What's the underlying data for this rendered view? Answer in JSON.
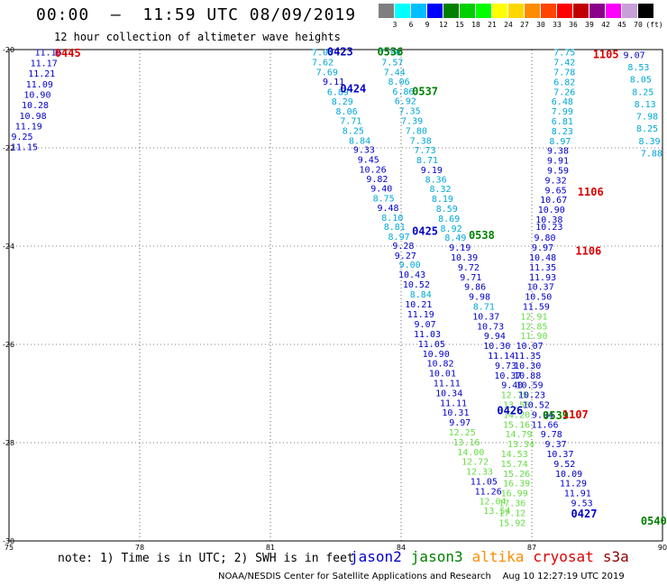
{
  "header": {
    "title": "00:00  –  11:59 UTC 08/09/2019",
    "subtitle": "12 hour collection of altimeter wave heights"
  },
  "scale": {
    "colors": [
      "#7f7f7f",
      "#00ffff",
      "#00bfff",
      "#0000ff",
      "#008000",
      "#00d000",
      "#00ff00",
      "#ffff00",
      "#ffd700",
      "#ff8c00",
      "#ff4500",
      "#ff0000",
      "#c00000",
      "#8b008b",
      "#ff00ff",
      "#c8a0d8",
      "#000000"
    ],
    "labels": [
      "3",
      "6",
      "9",
      "12",
      "15",
      "18",
      "21",
      "24",
      "27",
      "30",
      "33",
      "36",
      "39",
      "42",
      "45",
      "70",
      "(ft)"
    ]
  },
  "map": {
    "lon_range": [
      75,
      90
    ],
    "lat_range": [
      -30,
      -20
    ],
    "x_ticks": [
      "75",
      "78",
      "81",
      "84",
      "87",
      "90"
    ],
    "y_ticks": [
      "-20",
      "-22",
      "-24",
      "-26",
      "-28",
      "-30"
    ],
    "color_map": {
      "j2": "#0000cc",
      "j3": "#008000",
      "cy": "#dd0000",
      "al": "#ff8c00",
      "lc": "#00a8d8",
      "lg": "#66dd44"
    },
    "pass_labels": [
      {
        "t": "0445",
        "lon": 76.35,
        "lat": -20.07,
        "c": "cy"
      },
      {
        "t": "0423",
        "lon": 82.6,
        "lat": -20.05,
        "c": "j2"
      },
      {
        "t": "0536",
        "lon": 83.75,
        "lat": -20.05,
        "c": "j3"
      },
      {
        "t": "0424",
        "lon": 82.9,
        "lat": -20.8,
        "c": "j2"
      },
      {
        "t": "0537",
        "lon": 84.55,
        "lat": -20.85,
        "c": "j3"
      },
      {
        "t": "0425",
        "lon": 84.55,
        "lat": -23.7,
        "c": "j2"
      },
      {
        "t": "0538",
        "lon": 85.85,
        "lat": -23.78,
        "c": "j3"
      },
      {
        "t": "0426",
        "lon": 86.5,
        "lat": -27.35,
        "c": "j2"
      },
      {
        "t": "0539",
        "lon": 87.55,
        "lat": -27.45,
        "c": "j3"
      },
      {
        "t": "1107",
        "lon": 88.0,
        "lat": -27.43,
        "c": "cy"
      },
      {
        "t": "0427",
        "lon": 88.2,
        "lat": -29.45,
        "c": "j2"
      },
      {
        "t": "0540",
        "lon": 89.8,
        "lat": -29.6,
        "c": "j3"
      },
      {
        "t": "1105",
        "lon": 88.7,
        "lat": -20.1,
        "c": "cy"
      },
      {
        "t": "1106",
        "lon": 88.35,
        "lat": -22.9,
        "c": "cy"
      },
      {
        "t": "1106",
        "lon": 88.3,
        "lat": -24.1,
        "c": "cy"
      }
    ],
    "values": [
      {
        "t": "11.16",
        "lon": 75.9,
        "lat": -20.05,
        "c": "j2"
      },
      {
        "t": "11.17",
        "lon": 75.8,
        "lat": -20.27,
        "c": "j2"
      },
      {
        "t": "11.21",
        "lon": 75.75,
        "lat": -20.48,
        "c": "j2"
      },
      {
        "t": "11.09",
        "lon": 75.7,
        "lat": -20.7,
        "c": "j2"
      },
      {
        "t": "10.90",
        "lon": 75.65,
        "lat": -20.91,
        "c": "j2"
      },
      {
        "t": "10.28",
        "lon": 75.6,
        "lat": -21.12,
        "c": "j2"
      },
      {
        "t": "10.98",
        "lon": 75.55,
        "lat": -21.34,
        "c": "j2"
      },
      {
        "t": "11.19",
        "lon": 75.45,
        "lat": -21.55,
        "c": "j2"
      },
      {
        "t": "9.25",
        "lon": 75.3,
        "lat": -21.76,
        "c": "j2"
      },
      {
        "t": "11.15",
        "lon": 75.35,
        "lat": -21.97,
        "c": "j2"
      },
      {
        "t": "7.03",
        "lon": 82.2,
        "lat": -20.05,
        "c": "lc"
      },
      {
        "t": "7.62",
        "lon": 82.2,
        "lat": -20.25,
        "c": "lc"
      },
      {
        "t": "7.69",
        "lon": 82.3,
        "lat": -20.45,
        "c": "lc"
      },
      {
        "t": "9.11",
        "lon": 82.45,
        "lat": -20.64,
        "c": "j2"
      },
      {
        "t": "6.89",
        "lon": 82.55,
        "lat": -20.85,
        "c": "lc"
      },
      {
        "t": "8.29",
        "lon": 82.65,
        "lat": -21.05,
        "c": "lc"
      },
      {
        "t": "8.06",
        "lon": 82.75,
        "lat": -21.25,
        "c": "lc"
      },
      {
        "t": "7.71",
        "lon": 82.85,
        "lat": -21.44,
        "c": "lc"
      },
      {
        "t": "8.25",
        "lon": 82.9,
        "lat": -21.64,
        "c": "lc"
      },
      {
        "t": "8.84",
        "lon": 83.05,
        "lat": -21.84,
        "c": "lc"
      },
      {
        "t": "9.33",
        "lon": 83.15,
        "lat": -22.03,
        "c": "j2"
      },
      {
        "t": "9.45",
        "lon": 83.25,
        "lat": -22.23,
        "c": "j2"
      },
      {
        "t": "10.26",
        "lon": 83.35,
        "lat": -22.43,
        "c": "j2"
      },
      {
        "t": "9.82",
        "lon": 83.45,
        "lat": -22.62,
        "c": "j2"
      },
      {
        "t": "9.40",
        "lon": 83.55,
        "lat": -22.82,
        "c": "j2"
      },
      {
        "t": "8.75",
        "lon": 83.6,
        "lat": -23.02,
        "c": "lc"
      },
      {
        "t": "9.48",
        "lon": 83.7,
        "lat": -23.21,
        "c": "j2"
      },
      {
        "t": "8.10",
        "lon": 83.8,
        "lat": -23.41,
        "c": "lc"
      },
      {
        "t": "8.81",
        "lon": 83.85,
        "lat": -23.6,
        "c": "lc"
      },
      {
        "t": "8.97",
        "lon": 83.95,
        "lat": -23.8,
        "c": "lc"
      },
      {
        "t": "9.28",
        "lon": 84.05,
        "lat": -23.98,
        "c": "j2"
      },
      {
        "t": "9.27",
        "lon": 84.1,
        "lat": -24.18,
        "c": "j2"
      },
      {
        "t": "9.00",
        "lon": 84.2,
        "lat": -24.37,
        "c": "lc"
      },
      {
        "t": "10.43",
        "lon": 84.25,
        "lat": -24.57,
        "c": "j2"
      },
      {
        "t": "10.52",
        "lon": 84.35,
        "lat": -24.77,
        "c": "j2"
      },
      {
        "t": "8.84",
        "lon": 84.45,
        "lat": -24.97,
        "c": "lc"
      },
      {
        "t": "10.21",
        "lon": 84.4,
        "lat": -25.17,
        "c": "j2"
      },
      {
        "t": "11.19",
        "lon": 84.45,
        "lat": -25.38,
        "c": "j2"
      },
      {
        "t": "9.07",
        "lon": 84.55,
        "lat": -25.58,
        "c": "j2"
      },
      {
        "t": "11.03",
        "lon": 84.6,
        "lat": -25.78,
        "c": "j2"
      },
      {
        "t": "11.05",
        "lon": 84.7,
        "lat": -25.98,
        "c": "j2"
      },
      {
        "t": "10.90",
        "lon": 84.8,
        "lat": -26.18,
        "c": "j2"
      },
      {
        "t": "10.82",
        "lon": 84.9,
        "lat": -26.38,
        "c": "j2"
      },
      {
        "t": "10.01",
        "lon": 84.95,
        "lat": -26.58,
        "c": "j2"
      },
      {
        "t": "11.11",
        "lon": 85.05,
        "lat": -26.78,
        "c": "j2"
      },
      {
        "t": "10.34",
        "lon": 85.1,
        "lat": -26.98,
        "c": "j2"
      },
      {
        "t": "11.11",
        "lon": 85.2,
        "lat": -27.18,
        "c": "j2"
      },
      {
        "t": "10.31",
        "lon": 85.25,
        "lat": -27.38,
        "c": "j2"
      },
      {
        "t": "9.97",
        "lon": 85.35,
        "lat": -27.58,
        "c": "j2"
      },
      {
        "t": "12.25",
        "lon": 85.4,
        "lat": -27.78,
        "c": "lg"
      },
      {
        "t": "13.16",
        "lon": 85.5,
        "lat": -27.98,
        "c": "lg"
      },
      {
        "t": "14.00",
        "lon": 85.6,
        "lat": -28.18,
        "c": "lg"
      },
      {
        "t": "12.72",
        "lon": 85.7,
        "lat": -28.38,
        "c": "lg"
      },
      {
        "t": "12.33",
        "lon": 85.8,
        "lat": -28.58,
        "c": "lg"
      },
      {
        "t": "11.05",
        "lon": 85.9,
        "lat": -28.78,
        "c": "j2"
      },
      {
        "t": "11.26",
        "lon": 86.0,
        "lat": -28.98,
        "c": "j2"
      },
      {
        "t": "12.04",
        "lon": 86.1,
        "lat": -29.18,
        "c": "lg"
      },
      {
        "t": "13.54",
        "lon": 86.2,
        "lat": -29.38,
        "c": "lg"
      },
      {
        "t": "7.96",
        "lon": 83.75,
        "lat": -20.05,
        "c": "lc"
      },
      {
        "t": "7.57",
        "lon": 83.8,
        "lat": -20.25,
        "c": "lc"
      },
      {
        "t": "7.44",
        "lon": 83.85,
        "lat": -20.45,
        "c": "lc"
      },
      {
        "t": "8.06",
        "lon": 83.95,
        "lat": -20.64,
        "c": "lc"
      },
      {
        "t": "6.86",
        "lon": 84.05,
        "lat": -20.84,
        "c": "lc"
      },
      {
        "t": "6.92",
        "lon": 84.1,
        "lat": -21.04,
        "c": "lc"
      },
      {
        "t": "7.35",
        "lon": 84.2,
        "lat": -21.24,
        "c": "lc"
      },
      {
        "t": "7.39",
        "lon": 84.25,
        "lat": -21.44,
        "c": "lc"
      },
      {
        "t": "7.80",
        "lon": 84.35,
        "lat": -21.64,
        "c": "lc"
      },
      {
        "t": "7.38",
        "lon": 84.45,
        "lat": -21.84,
        "c": "lc"
      },
      {
        "t": "7.73",
        "lon": 84.55,
        "lat": -22.04,
        "c": "lc"
      },
      {
        "t": "8.71",
        "lon": 84.6,
        "lat": -22.24,
        "c": "lc"
      },
      {
        "t": "9.19",
        "lon": 84.7,
        "lat": -22.44,
        "c": "j2"
      },
      {
        "t": "8.36",
        "lon": 84.8,
        "lat": -22.63,
        "c": "lc"
      },
      {
        "t": "8.32",
        "lon": 84.9,
        "lat": -22.83,
        "c": "lc"
      },
      {
        "t": "8.19",
        "lon": 84.95,
        "lat": -23.03,
        "c": "lc"
      },
      {
        "t": "8.59",
        "lon": 85.05,
        "lat": -23.23,
        "c": "lc"
      },
      {
        "t": "8.69",
        "lon": 85.1,
        "lat": -23.43,
        "c": "lc"
      },
      {
        "t": "8.92",
        "lon": 85.15,
        "lat": -23.63,
        "c": "lc"
      },
      {
        "t": "8.49",
        "lon": 85.25,
        "lat": -23.82,
        "c": "lc"
      },
      {
        "t": "9.19",
        "lon": 85.35,
        "lat": -24.02,
        "c": "j2"
      },
      {
        "t": "10.39",
        "lon": 85.45,
        "lat": -24.22,
        "c": "j2"
      },
      {
        "t": "9.72",
        "lon": 85.55,
        "lat": -24.42,
        "c": "j2"
      },
      {
        "t": "9.71",
        "lon": 85.6,
        "lat": -24.62,
        "c": "j2"
      },
      {
        "t": "9.86",
        "lon": 85.7,
        "lat": -24.82,
        "c": "j2"
      },
      {
        "t": "9.98",
        "lon": 85.8,
        "lat": -25.02,
        "c": "j2"
      },
      {
        "t": "8.71",
        "lon": 85.9,
        "lat": -25.22,
        "c": "lc"
      },
      {
        "t": "10.37",
        "lon": 85.95,
        "lat": -25.42,
        "c": "j2"
      },
      {
        "t": "10.73",
        "lon": 86.05,
        "lat": -25.62,
        "c": "j2"
      },
      {
        "t": "9.94",
        "lon": 86.15,
        "lat": -25.82,
        "c": "j2"
      },
      {
        "t": "10.30",
        "lon": 86.2,
        "lat": -26.02,
        "c": "j2"
      },
      {
        "t": "11.14",
        "lon": 86.3,
        "lat": -26.22,
        "c": "j2"
      },
      {
        "t": "9.73",
        "lon": 86.4,
        "lat": -26.42,
        "c": "j2"
      },
      {
        "t": "10.37",
        "lon": 86.45,
        "lat": -26.62,
        "c": "j2"
      },
      {
        "t": "9.40",
        "lon": 86.55,
        "lat": -26.82,
        "c": "j2"
      },
      {
        "t": "12.75",
        "lon": 86.6,
        "lat": -27.02,
        "c": "lg"
      },
      {
        "t": "13.55",
        "lon": 86.65,
        "lat": -27.22,
        "c": "lg"
      },
      {
        "t": "14.20",
        "lon": 86.65,
        "lat": -27.42,
        "c": "lg"
      },
      {
        "t": "15.16",
        "lon": 86.65,
        "lat": -27.62,
        "c": "lg"
      },
      {
        "t": "14.79",
        "lon": 86.7,
        "lat": -27.82,
        "c": "lg"
      },
      {
        "t": "13.34",
        "lon": 86.75,
        "lat": -28.02,
        "c": "lg"
      },
      {
        "t": "14.53",
        "lon": 86.6,
        "lat": -28.22,
        "c": "lg"
      },
      {
        "t": "15.74",
        "lon": 86.6,
        "lat": -28.42,
        "c": "lg"
      },
      {
        "t": "15.26",
        "lon": 86.65,
        "lat": -28.62,
        "c": "lg"
      },
      {
        "t": "16.39",
        "lon": 86.65,
        "lat": -28.82,
        "c": "lg"
      },
      {
        "t": "16.99",
        "lon": 86.6,
        "lat": -29.02,
        "c": "lg"
      },
      {
        "t": "17.36",
        "lon": 86.55,
        "lat": -29.22,
        "c": "lg"
      },
      {
        "t": "17.12",
        "lon": 86.55,
        "lat": -29.42,
        "c": "lg"
      },
      {
        "t": "15.92",
        "lon": 86.55,
        "lat": -29.62,
        "c": "lg"
      },
      {
        "t": "7.75",
        "lon": 87.75,
        "lat": -20.05,
        "c": "lc"
      },
      {
        "t": "7.42",
        "lon": 87.75,
        "lat": -20.25,
        "c": "lc"
      },
      {
        "t": "7.78",
        "lon": 87.75,
        "lat": -20.45,
        "c": "lc"
      },
      {
        "t": "6.82",
        "lon": 87.75,
        "lat": -20.65,
        "c": "lc"
      },
      {
        "t": "7.26",
        "lon": 87.75,
        "lat": -20.85,
        "c": "lc"
      },
      {
        "t": "6.48",
        "lon": 87.7,
        "lat": -21.05,
        "c": "lc"
      },
      {
        "t": "7.99",
        "lon": 87.7,
        "lat": -21.25,
        "c": "lc"
      },
      {
        "t": "6.81",
        "lon": 87.7,
        "lat": -21.45,
        "c": "lc"
      },
      {
        "t": "8.23",
        "lon": 87.7,
        "lat": -21.65,
        "c": "lc"
      },
      {
        "t": "8.97",
        "lon": 87.65,
        "lat": -21.85,
        "c": "lc"
      },
      {
        "t": "9.38",
        "lon": 87.6,
        "lat": -22.05,
        "c": "j2"
      },
      {
        "t": "9.91",
        "lon": 87.6,
        "lat": -22.25,
        "c": "j2"
      },
      {
        "t": "9.59",
        "lon": 87.6,
        "lat": -22.45,
        "c": "j2"
      },
      {
        "t": "9.32",
        "lon": 87.55,
        "lat": -22.65,
        "c": "j2"
      },
      {
        "t": "9.65",
        "lon": 87.55,
        "lat": -22.85,
        "c": "j2"
      },
      {
        "t": "10.67",
        "lon": 87.5,
        "lat": -23.05,
        "c": "j2"
      },
      {
        "t": "10.90",
        "lon": 87.45,
        "lat": -23.25,
        "c": "j2"
      },
      {
        "t": "10.38",
        "lon": 87.4,
        "lat": -23.45,
        "c": "j2"
      },
      {
        "t": "10.23",
        "lon": 87.4,
        "lat": -23.6,
        "c": "j2"
      },
      {
        "t": "9.80",
        "lon": 87.3,
        "lat": -23.82,
        "c": "j2"
      },
      {
        "t": "9.97",
        "lon": 87.25,
        "lat": -24.02,
        "c": "j2"
      },
      {
        "t": "10.48",
        "lon": 87.25,
        "lat": -24.22,
        "c": "j2"
      },
      {
        "t": "11.35",
        "lon": 87.25,
        "lat": -24.42,
        "c": "j2"
      },
      {
        "t": "11.93",
        "lon": 87.25,
        "lat": -24.62,
        "c": "j2"
      },
      {
        "t": "10.37",
        "lon": 87.2,
        "lat": -24.82,
        "c": "j2"
      },
      {
        "t": "10.50",
        "lon": 87.15,
        "lat": -25.02,
        "c": "j2"
      },
      {
        "t": "11.59",
        "lon": 87.1,
        "lat": -25.22,
        "c": "j2"
      },
      {
        "t": "12.91",
        "lon": 87.05,
        "lat": -25.42,
        "c": "lg"
      },
      {
        "t": "12.85",
        "lon": 87.05,
        "lat": -25.62,
        "c": "lg"
      },
      {
        "t": "11.90",
        "lon": 87.05,
        "lat": -25.82,
        "c": "lg"
      },
      {
        "t": "10.07",
        "lon": 86.95,
        "lat": -26.02,
        "c": "j2"
      },
      {
        "t": "11.35",
        "lon": 86.9,
        "lat": -26.22,
        "c": "j2"
      },
      {
        "t": "10.30",
        "lon": 86.9,
        "lat": -26.42,
        "c": "j2"
      },
      {
        "t": "10.88",
        "lon": 86.9,
        "lat": -26.62,
        "c": "j2"
      },
      {
        "t": "10.59",
        "lon": 86.95,
        "lat": -26.82,
        "c": "j2"
      },
      {
        "t": "10.23",
        "lon": 87.0,
        "lat": -27.02,
        "c": "j2"
      },
      {
        "t": "10.52",
        "lon": 87.1,
        "lat": -27.22,
        "c": "j2"
      },
      {
        "t": "9.94",
        "lon": 87.25,
        "lat": -27.42,
        "c": "j2"
      },
      {
        "t": "11.66",
        "lon": 87.3,
        "lat": -27.62,
        "c": "j2"
      },
      {
        "t": "9.78",
        "lon": 87.45,
        "lat": -27.82,
        "c": "j2"
      },
      {
        "t": "9.37",
        "lon": 87.55,
        "lat": -28.02,
        "c": "j2"
      },
      {
        "t": "10.37",
        "lon": 87.65,
        "lat": -28.22,
        "c": "j2"
      },
      {
        "t": "9.52",
        "lon": 87.75,
        "lat": -28.42,
        "c": "j2"
      },
      {
        "t": "10.09",
        "lon": 87.85,
        "lat": -28.62,
        "c": "j2"
      },
      {
        "t": "11.29",
        "lon": 87.95,
        "lat": -28.82,
        "c": "j2"
      },
      {
        "t": "11.91",
        "lon": 88.05,
        "lat": -29.02,
        "c": "j2"
      },
      {
        "t": "9.53",
        "lon": 88.15,
        "lat": -29.22,
        "c": "j2"
      },
      {
        "t": "9.07",
        "lon": 89.35,
        "lat": -20.1,
        "c": "j2"
      },
      {
        "t": "8.53",
        "lon": 89.45,
        "lat": -20.35,
        "c": "lc"
      },
      {
        "t": "8.05",
        "lon": 89.5,
        "lat": -20.6,
        "c": "lc"
      },
      {
        "t": "8.25",
        "lon": 89.55,
        "lat": -20.85,
        "c": "lc"
      },
      {
        "t": "8.13",
        "lon": 89.6,
        "lat": -21.1,
        "c": "lc"
      },
      {
        "t": "7.98",
        "lon": 89.65,
        "lat": -21.35,
        "c": "lc"
      },
      {
        "t": "8.25",
        "lon": 89.65,
        "lat": -21.6,
        "c": "lc"
      },
      {
        "t": "8.39",
        "lon": 89.7,
        "lat": -21.85,
        "c": "lc"
      },
      {
        "t": "7.88",
        "lon": 89.75,
        "lat": -22.1,
        "c": "lc"
      }
    ]
  },
  "note": "note: 1) Time is in UTC; 2) SWH is in feet",
  "legend": [
    {
      "name": "jason2",
      "color": "#0000cc"
    },
    {
      "name": "jason3",
      "color": "#008000"
    },
    {
      "name": "altika",
      "color": "#ff8c00"
    },
    {
      "name": "cryosat",
      "color": "#dd0000"
    },
    {
      "name": "s3a",
      "color": "#8b0000"
    }
  ],
  "footer": "NOAA/NESDIS Center for Satellite Applications and Research    Aug 10 12:27:19 UTC 2019"
}
